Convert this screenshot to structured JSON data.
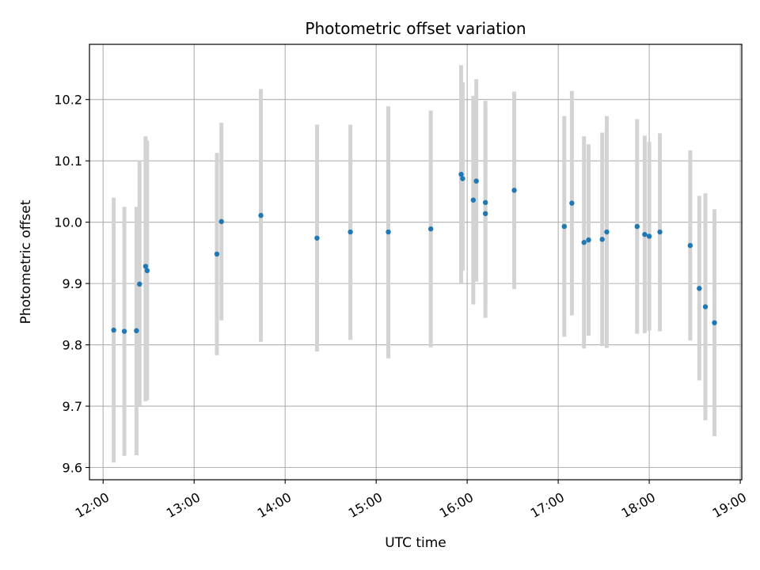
{
  "chart_data": {
    "type": "scatter",
    "title": "Photometric offset variation",
    "xlabel": "UTC time",
    "ylabel": "Photometric offset",
    "xlim": [
      "11:51",
      "19:01"
    ],
    "ylim": [
      9.58,
      10.29
    ],
    "x_ticks": [
      "12:00",
      "13:00",
      "14:00",
      "15:00",
      "16:00",
      "17:00",
      "18:00",
      "19:00"
    ],
    "y_ticks": [
      9.6,
      9.7,
      9.8,
      9.9,
      10.0,
      10.1,
      10.2
    ],
    "grid": true,
    "colors": {
      "point": "#1f77b4",
      "errorbar": "#d3d3d3",
      "grid": "#b0b0b0"
    },
    "points": [
      {
        "x": "12:07",
        "y": 9.824,
        "ylow": 9.608,
        "yhigh": 10.04
      },
      {
        "x": "12:14",
        "y": 9.822,
        "ylow": 9.619,
        "yhigh": 10.025
      },
      {
        "x": "12:22",
        "y": 9.823,
        "ylow": 9.62,
        "yhigh": 10.025
      },
      {
        "x": "12:24",
        "y": 9.899,
        "ylow": 9.701,
        "yhigh": 10.1
      },
      {
        "x": "12:28",
        "y": 9.928,
        "ylow": 9.708,
        "yhigh": 10.14
      },
      {
        "x": "12:29",
        "y": 9.921,
        "ylow": 9.71,
        "yhigh": 10.133
      },
      {
        "x": "13:15",
        "y": 9.948,
        "ylow": 9.783,
        "yhigh": 10.113
      },
      {
        "x": "13:18",
        "y": 10.001,
        "ylow": 9.84,
        "yhigh": 10.162
      },
      {
        "x": "13:44",
        "y": 10.011,
        "ylow": 9.805,
        "yhigh": 10.217
      },
      {
        "x": "14:21",
        "y": 9.974,
        "ylow": 9.789,
        "yhigh": 10.159
      },
      {
        "x": "14:43",
        "y": 9.984,
        "ylow": 9.808,
        "yhigh": 10.159
      },
      {
        "x": "15:08",
        "y": 9.984,
        "ylow": 9.778,
        "yhigh": 10.189
      },
      {
        "x": "15:36",
        "y": 9.989,
        "ylow": 9.796,
        "yhigh": 10.182
      },
      {
        "x": "15:56",
        "y": 10.078,
        "ylow": 9.901,
        "yhigh": 10.256
      },
      {
        "x": "15:57",
        "y": 10.071,
        "ylow": 9.921,
        "yhigh": 10.228
      },
      {
        "x": "16:04",
        "y": 10.036,
        "ylow": 9.866,
        "yhigh": 10.206
      },
      {
        "x": "16:06",
        "y": 10.067,
        "ylow": 9.903,
        "yhigh": 10.233
      },
      {
        "x": "16:12",
        "y": 10.032,
        "ylow": 9.868,
        "yhigh": 10.198
      },
      {
        "x": "16:12",
        "y": 10.014,
        "ylow": 9.844,
        "yhigh": 10.184
      },
      {
        "x": "16:31",
        "y": 10.052,
        "ylow": 9.891,
        "yhigh": 10.213
      },
      {
        "x": "17:04",
        "y": 9.993,
        "ylow": 9.813,
        "yhigh": 10.173
      },
      {
        "x": "17:09",
        "y": 10.031,
        "ylow": 9.848,
        "yhigh": 10.214
      },
      {
        "x": "17:17",
        "y": 9.967,
        "ylow": 9.794,
        "yhigh": 10.14
      },
      {
        "x": "17:20",
        "y": 9.971,
        "ylow": 9.815,
        "yhigh": 10.127
      },
      {
        "x": "17:29",
        "y": 9.972,
        "ylow": 9.798,
        "yhigh": 10.146
      },
      {
        "x": "17:32",
        "y": 9.984,
        "ylow": 9.795,
        "yhigh": 10.173
      },
      {
        "x": "17:52",
        "y": 9.993,
        "ylow": 9.818,
        "yhigh": 10.168
      },
      {
        "x": "17:57",
        "y": 9.98,
        "ylow": 9.819,
        "yhigh": 10.141
      },
      {
        "x": "18:00",
        "y": 9.977,
        "ylow": 9.823,
        "yhigh": 10.131
      },
      {
        "x": "18:07",
        "y": 9.984,
        "ylow": 9.822,
        "yhigh": 10.145
      },
      {
        "x": "18:27",
        "y": 9.962,
        "ylow": 9.807,
        "yhigh": 10.117
      },
      {
        "x": "18:33",
        "y": 9.892,
        "ylow": 9.742,
        "yhigh": 10.043
      },
      {
        "x": "18:37",
        "y": 9.862,
        "ylow": 9.677,
        "yhigh": 10.047
      },
      {
        "x": "18:43",
        "y": 9.836,
        "ylow": 9.651,
        "yhigh": 10.021
      }
    ]
  }
}
